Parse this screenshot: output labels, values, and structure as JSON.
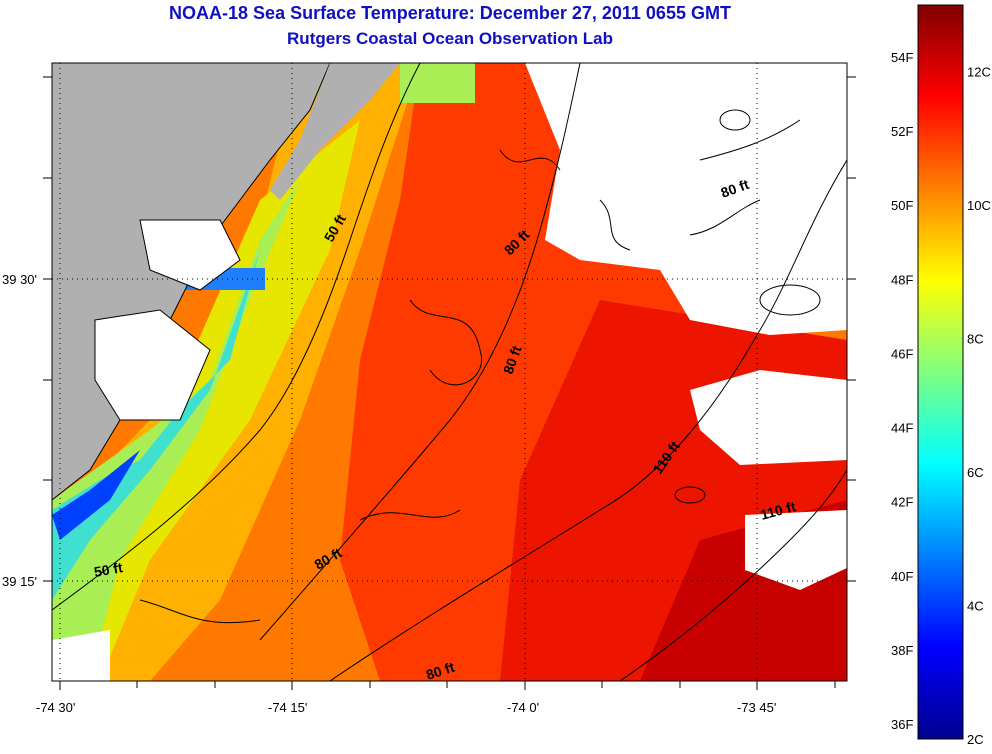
{
  "title": "NOAA-18 Sea Surface Temperature:  December 27, 2011 0655 GMT",
  "subtitle": "Rutgers Coastal Ocean Observation Lab",
  "axes": {
    "x_ticks": [
      "-74 30'",
      "-74 15'",
      "-74 0'",
      "-73 45'"
    ],
    "y_ticks": [
      "39 30'",
      "39 15'"
    ]
  },
  "contour_labels": [
    "50 ft",
    "50 ft",
    "80 ft",
    "80 ft",
    "80 ft",
    "80 ft",
    "80 ft",
    "110 ft",
    "110 ft"
  ],
  "colorbar": {
    "range_c": [
      2,
      13
    ],
    "f_labels": [
      "54F",
      "52F",
      "50F",
      "48F",
      "46F",
      "44F",
      "42F",
      "40F",
      "38F",
      "36F"
    ],
    "c_labels": [
      "12C",
      "10C",
      "8C",
      "6C",
      "4C",
      "2C"
    ]
  },
  "colors": {
    "land": "#b0b0b0",
    "no_data": "#ffffff",
    "title": "#1010c0"
  }
}
